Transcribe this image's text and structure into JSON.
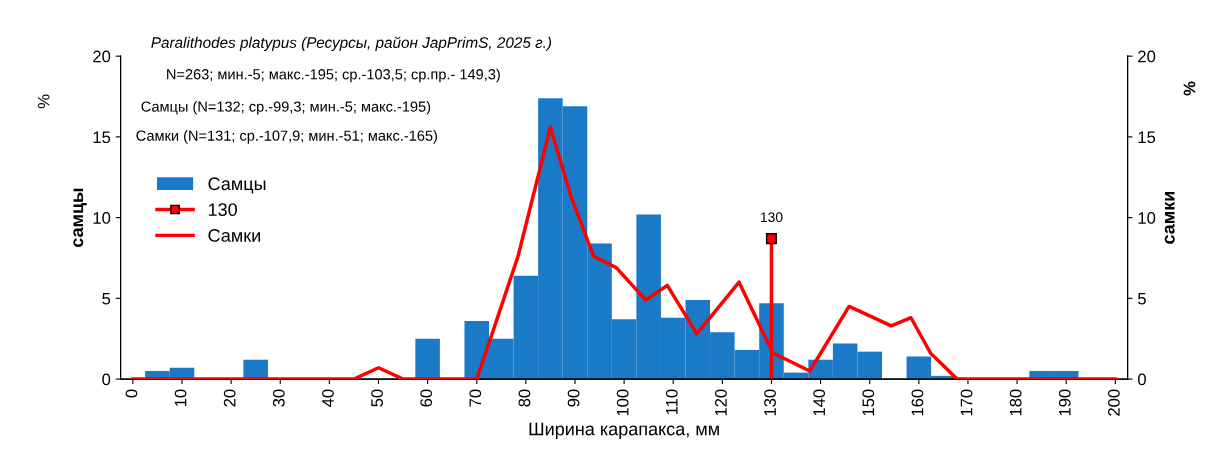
{
  "chart_data": {
    "type": "histogram",
    "title": "Paralithodes platypus (Ресурсы, район JapPrimS, 2025 г.)",
    "xlabel": "Ширина карапакса, мм",
    "ylabel": "самцы",
    "y2label": "самки",
    "bins": [
      -2.5,
      2.5,
      7.5,
      12.5,
      17.5,
      22.5,
      27.5,
      32.5,
      37.5,
      42.5,
      47.5,
      52.5,
      57.5,
      62.5,
      67.5,
      72.5,
      77.5,
      82.5,
      87.5,
      92.5,
      97.5,
      102.5,
      107.5,
      112.5,
      117.5,
      122.5,
      127.5,
      132.5,
      137.5,
      142.5,
      147.5,
      152.5,
      157.5,
      162.5,
      167.5,
      172.5,
      177.5,
      182.5,
      187.5,
      192.5,
      197.5,
      202.5
    ],
    "series": [
      {
        "name": "Самцы",
        "color": "#1a7ac8",
        "values": [
          0,
          0.5,
          0.7,
          0,
          0,
          1.2,
          0,
          0,
          0,
          0,
          0,
          0,
          2.5,
          0,
          3.6,
          2.5,
          6.4,
          17.4,
          16.9,
          8.4,
          3.7,
          10.2,
          3.8,
          4.9,
          2.9,
          1.8,
          4.7,
          0.4,
          1.2,
          2.2,
          1.7,
          0,
          1.4,
          0.2,
          0,
          0,
          0,
          0.5,
          0.5,
          0,
          0
        ]
      },
      {
        "name": "130",
        "type": "line",
        "color": "#ff0000",
        "marker": "square",
        "x": [
          130,
          130
        ],
        "values": [
          0,
          8.7
        ]
      },
      {
        "name": "Самки",
        "type": "line",
        "axis": "y2",
        "color": "#ff0000",
        "x": [
          0,
          45,
          50,
          55,
          70,
          71.8,
          78.4,
          85,
          89.2,
          93.8,
          98.4,
          104.4,
          108.8,
          114.8,
          123.4,
          129.2,
          130.4,
          137.8,
          145.8,
          154.4,
          158.4,
          162.4,
          167.8,
          200
        ],
        "values": [
          0,
          0,
          0.7,
          0,
          0,
          1.6,
          7.6,
          15.6,
          11.3,
          7.6,
          6.9,
          4.9,
          5.8,
          2.8,
          6.0,
          2.3,
          1.6,
          0.5,
          4.5,
          3.3,
          3.8,
          1.6,
          0,
          0
        ]
      }
    ],
    "xlim": [
      -2.5,
      202.5
    ],
    "xticks": [
      0,
      10,
      20,
      30,
      40,
      50,
      60,
      70,
      80,
      90,
      100,
      110,
      120,
      130,
      140,
      150,
      160,
      170,
      180,
      190,
      200
    ],
    "ylim": [
      0,
      20
    ],
    "yticks": [
      0,
      5,
      10,
      15,
      20
    ],
    "y2lim": [
      0,
      20
    ],
    "y2ticks": [
      0,
      5,
      10,
      15,
      20
    ],
    "legend": "left",
    "grid": false,
    "annotations": [
      "N=263; мин.-5; макс.-195; ср.-103,5; ср.пр.- 149,3)",
      "Самцы (N=132; ср.-99,3; мин.-5; макс.-195)",
      "Самки (N=131; ср.-107,9; мин.-51; макс.-165)",
      "%",
      "%",
      {
        "text": "130",
        "x": 130,
        "y": 8.7
      }
    ]
  }
}
